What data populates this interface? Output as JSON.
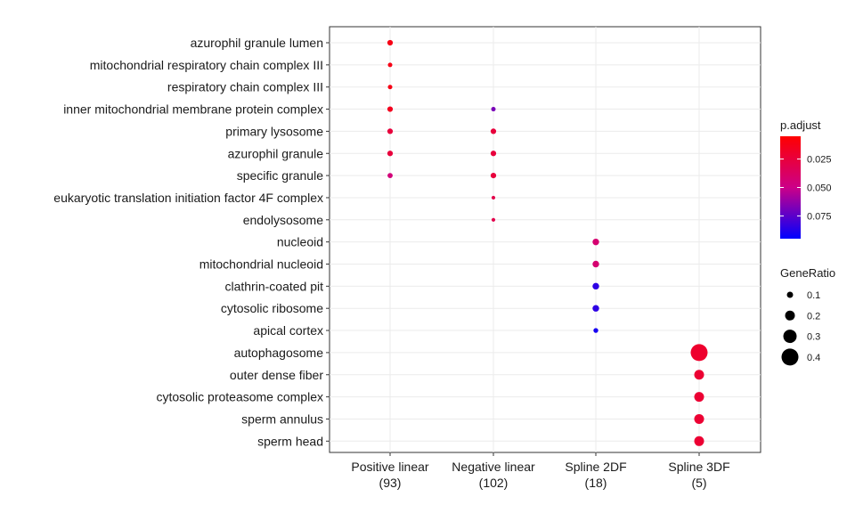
{
  "chart_data": {
    "type": "scatter",
    "categories_x": [
      {
        "label": "Positive linear",
        "count": "(93)"
      },
      {
        "label": "Negative linear",
        "count": "(102)"
      },
      {
        "label": "Spline 2DF",
        "count": "(18)"
      },
      {
        "label": "Spline 3DF",
        "count": "(5)"
      }
    ],
    "categories_y": [
      "azurophil granule lumen",
      "mitochondrial respiratory chain complex III",
      "respiratory chain complex III",
      "inner mitochondrial membrane protein complex",
      "primary lysosome",
      "azurophil granule",
      "specific granule",
      "eukaryotic translation initiation factor 4F complex",
      "endolysosome",
      "nucleoid",
      "mitochondrial nucleoid",
      "clathrin-coated pit",
      "cytosolic ribosome",
      "apical cortex",
      "autophagosome",
      "outer dense fiber",
      "cytosolic proteasome complex",
      "sperm annulus",
      "sperm head"
    ],
    "points": [
      {
        "x": "Positive linear",
        "y": "azurophil granule lumen",
        "gene_ratio": 0.08,
        "p_adjust": 0.012
      },
      {
        "x": "Positive linear",
        "y": "mitochondrial respiratory chain complex III",
        "gene_ratio": 0.05,
        "p_adjust": 0.012
      },
      {
        "x": "Positive linear",
        "y": "respiratory chain complex III",
        "gene_ratio": 0.05,
        "p_adjust": 0.012
      },
      {
        "x": "Positive linear",
        "y": "inner mitochondrial membrane protein complex",
        "gene_ratio": 0.08,
        "p_adjust": 0.015
      },
      {
        "x": "Positive linear",
        "y": "primary lysosome",
        "gene_ratio": 0.08,
        "p_adjust": 0.025
      },
      {
        "x": "Positive linear",
        "y": "azurophil granule",
        "gene_ratio": 0.08,
        "p_adjust": 0.025
      },
      {
        "x": "Positive linear",
        "y": "specific granule",
        "gene_ratio": 0.07,
        "p_adjust": 0.045
      },
      {
        "x": "Negative linear",
        "y": "inner mitochondrial membrane protein complex",
        "gene_ratio": 0.05,
        "p_adjust": 0.068
      },
      {
        "x": "Negative linear",
        "y": "primary lysosome",
        "gene_ratio": 0.08,
        "p_adjust": 0.025
      },
      {
        "x": "Negative linear",
        "y": "azurophil granule",
        "gene_ratio": 0.08,
        "p_adjust": 0.025
      },
      {
        "x": "Negative linear",
        "y": "specific granule",
        "gene_ratio": 0.08,
        "p_adjust": 0.025
      },
      {
        "x": "Negative linear",
        "y": "eukaryotic translation initiation factor 4F complex",
        "gene_ratio": 0.03,
        "p_adjust": 0.03
      },
      {
        "x": "Negative linear",
        "y": "endolysosome",
        "gene_ratio": 0.03,
        "p_adjust": 0.03
      },
      {
        "x": "Spline 2DF",
        "y": "nucleoid",
        "gene_ratio": 0.11,
        "p_adjust": 0.042
      },
      {
        "x": "Spline 2DF",
        "y": "mitochondrial nucleoid",
        "gene_ratio": 0.11,
        "p_adjust": 0.042
      },
      {
        "x": "Spline 2DF",
        "y": "clathrin-coated pit",
        "gene_ratio": 0.11,
        "p_adjust": 0.085
      },
      {
        "x": "Spline 2DF",
        "y": "cytosolic ribosome",
        "gene_ratio": 0.11,
        "p_adjust": 0.085
      },
      {
        "x": "Spline 2DF",
        "y": "apical cortex",
        "gene_ratio": 0.06,
        "p_adjust": 0.09
      },
      {
        "x": "Spline 3DF",
        "y": "autophagosome",
        "gene_ratio": 0.4,
        "p_adjust": 0.02
      },
      {
        "x": "Spline 3DF",
        "y": "outer dense fiber",
        "gene_ratio": 0.2,
        "p_adjust": 0.022
      },
      {
        "x": "Spline 3DF",
        "y": "cytosolic proteasome complex",
        "gene_ratio": 0.2,
        "p_adjust": 0.022
      },
      {
        "x": "Spline 3DF",
        "y": "sperm annulus",
        "gene_ratio": 0.2,
        "p_adjust": 0.022
      },
      {
        "x": "Spline 3DF",
        "y": "sperm head",
        "gene_ratio": 0.2,
        "p_adjust": 0.022
      }
    ],
    "color_legend": {
      "title": "p.adjust",
      "range": [
        0.005,
        0.095
      ],
      "ticks": [
        0.025,
        0.05,
        0.075
      ],
      "tick_labels": [
        "0.025",
        "0.050",
        "0.075"
      ],
      "low_color": "#ff0000",
      "high_color": "#0000ff"
    },
    "size_legend": {
      "title": "GeneRatio",
      "values": [
        0.1,
        0.2,
        0.3,
        0.4
      ],
      "labels": [
        "0.1",
        "0.2",
        "0.3",
        "0.4"
      ]
    },
    "grid": true,
    "legend_position": "right"
  }
}
